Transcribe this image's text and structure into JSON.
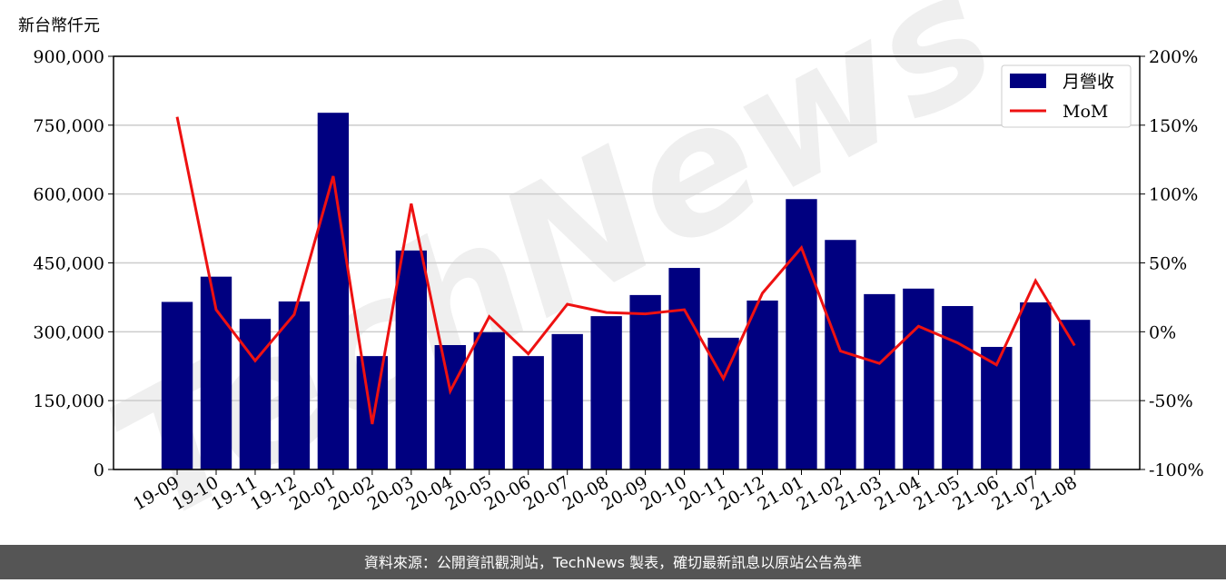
{
  "chart_data": {
    "type": "bar",
    "y_label": "新台幣仟元",
    "watermark": "TechNews",
    "source": "資料來源：公開資訊觀測站，TechNews 製表，確切最新訊息以原站公告為準",
    "categories": [
      "19-09",
      "19-10",
      "19-11",
      "19-12",
      "20-01",
      "20-02",
      "20-03",
      "20-04",
      "20-05",
      "20-06",
      "20-07",
      "20-08",
      "20-09",
      "20-10",
      "20-11",
      "20-12",
      "21-01",
      "21-02",
      "21-03",
      "21-04",
      "21-05",
      "21-06",
      "21-07",
      "21-08"
    ],
    "series": [
      {
        "name": "月營收",
        "type": "bar",
        "color": "#000080",
        "values": [
          365000,
          420000,
          328000,
          366000,
          777000,
          247000,
          477000,
          271000,
          299000,
          247000,
          295000,
          334000,
          380000,
          439000,
          287000,
          368000,
          589000,
          500000,
          382000,
          394000,
          356000,
          267000,
          364000,
          326000
        ]
      },
      {
        "name": "MoM",
        "type": "line",
        "color": "#ee1111",
        "axis": "y2",
        "values": [
          156,
          16,
          -21,
          12.5,
          113,
          -67,
          93,
          -43,
          11,
          -16,
          20,
          14,
          13,
          16,
          -34,
          28,
          61,
          -14,
          -23,
          4,
          -8,
          -24,
          37,
          -10
        ]
      }
    ],
    "ylim": [
      0,
      900000
    ],
    "yticks": [
      0,
      {
        "value": 150000,
        "label": "150,000"
      },
      {
        "value": 300000,
        "label": "300,000"
      },
      {
        "value": 450000,
        "label": "450,000"
      },
      {
        "value": 600000,
        "label": "600,000"
      },
      {
        "value": 750000,
        "label": "750,000"
      },
      {
        "value": 900000,
        "label": "900,000"
      }
    ],
    "y2lim": [
      -100,
      200
    ],
    "y2ticks": [
      {
        "value": -100,
        "label": "-100%"
      },
      {
        "value": -50,
        "label": "-50%"
      },
      {
        "value": 0,
        "label": "0%"
      },
      {
        "value": 50,
        "label": "50%"
      },
      {
        "value": 100,
        "label": "100%"
      },
      {
        "value": 150,
        "label": "150%"
      },
      {
        "value": 200,
        "label": "200%"
      }
    ],
    "grid": true,
    "legend": "upper right"
  }
}
